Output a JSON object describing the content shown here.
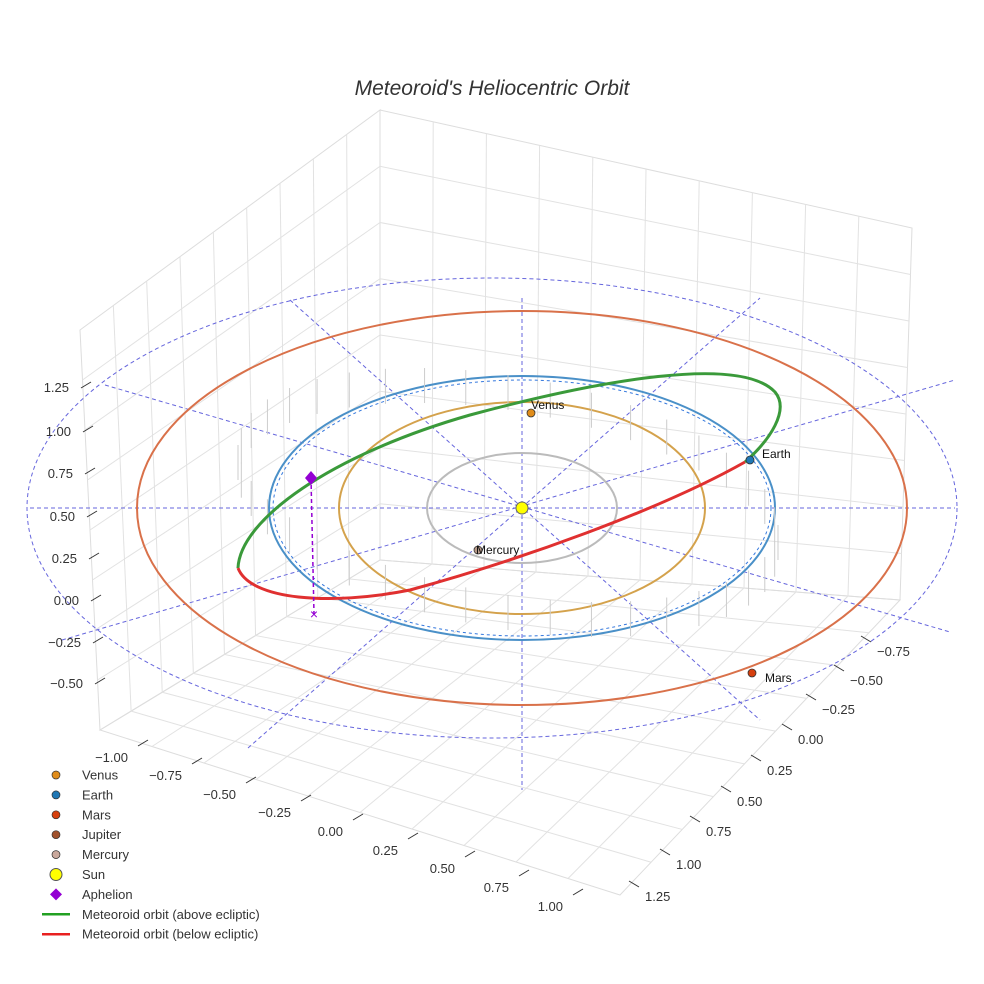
{
  "chart_data": {
    "type": "scatter",
    "title": "Meteoroid's Heliocentric Orbit",
    "projection": "3d",
    "grid": true,
    "legend_placement": "bottom-left",
    "axes": {
      "x": {
        "ticks": [
          "−1.00",
          "−0.75",
          "−0.50",
          "−0.25",
          "0.00",
          "0.25",
          "0.50",
          "0.75",
          "1.00"
        ]
      },
      "y": {
        "ticks": [
          "−0.75",
          "−0.50",
          "−0.25",
          "0.00",
          "0.25",
          "0.50",
          "0.75",
          "1.00",
          "1.25"
        ]
      },
      "z": {
        "ticks": [
          "1.25",
          "1.00",
          "0.75",
          "0.50",
          "0.25",
          "0.00",
          "−0.25",
          "−0.50"
        ]
      }
    },
    "orbits": [
      {
        "name": "Mercury orbit",
        "color": "#bbbbbb",
        "radius_au": 0.39
      },
      {
        "name": "Venus orbit",
        "color": "#d4a24c",
        "radius_au": 0.72
      },
      {
        "name": "Earth orbit",
        "color": "#4a90c8",
        "radius_au": 1.0
      },
      {
        "name": "Mars orbit",
        "color": "#d9714a",
        "radius_au": 1.52
      }
    ],
    "planets": [
      {
        "name": "Venus",
        "label": "Venus",
        "color": "#e08c1a"
      },
      {
        "name": "Earth",
        "label": "Earth",
        "color": "#1f77b4"
      },
      {
        "name": "Mars",
        "label": "Mars",
        "color": "#d6400e"
      },
      {
        "name": "Mercury",
        "label": "Mercury",
        "color": "#b89a8a"
      }
    ],
    "sun": {
      "name": "Sun",
      "color": "#ffff00"
    },
    "aphelion": {
      "name": "Aphelion",
      "color": "#9400d3"
    },
    "meteoroid": {
      "above_color": "#3a9a3a",
      "below_color": "#e03030"
    },
    "legend": [
      {
        "label": "Venus",
        "marker": "circle",
        "color": "#e08c1a"
      },
      {
        "label": "Earth",
        "marker": "circle",
        "color": "#1f77b4"
      },
      {
        "label": "Mars",
        "marker": "circle",
        "color": "#d6400e"
      },
      {
        "label": "Jupiter",
        "marker": "circle",
        "color": "#a0522d"
      },
      {
        "label": "Mercury",
        "marker": "circle",
        "color": "#c9a89c"
      },
      {
        "label": "Sun",
        "marker": "big-circle",
        "color": "#ffff00"
      },
      {
        "label": "Aphelion",
        "marker": "diamond",
        "color": "#9400d3"
      },
      {
        "label": "Meteoroid orbit (above ecliptic)",
        "marker": "line",
        "color": "#22a022"
      },
      {
        "label": "Meteoroid orbit (below ecliptic)",
        "marker": "line",
        "color": "#e82020"
      }
    ]
  }
}
